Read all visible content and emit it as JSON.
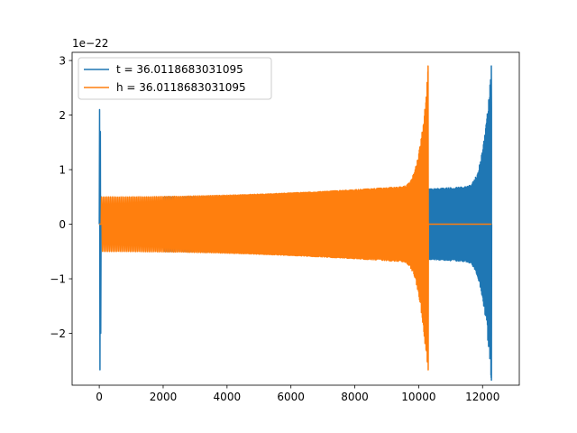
{
  "chart_data": {
    "type": "line",
    "title": "",
    "xlabel": "",
    "ylabel": "",
    "y_offset_label": "1e−22",
    "xlim": [
      -850,
      13150
    ],
    "ylim": [
      -2.95,
      3.15
    ],
    "x_ticks": [
      0,
      2000,
      4000,
      6000,
      8000,
      10000,
      12000
    ],
    "x_tick_labels": [
      "0",
      "2000",
      "4000",
      "6000",
      "8000",
      "10000",
      "12000"
    ],
    "y_ticks": [
      -2,
      -1,
      0,
      1,
      2,
      3
    ],
    "y_tick_labels": [
      "−2",
      "−1",
      "0",
      "1",
      "2",
      "3"
    ],
    "grid": false,
    "legend_position": "upper-left",
    "series": [
      {
        "name": "t = 36.0118683031095",
        "color": "#1f77b4",
        "shape": "chirp",
        "samples_x_range": [
          0,
          12280
        ],
        "x_start": 0,
        "x_merger": 12280,
        "baseline_amplitude": 0.5,
        "pre_merger_amplitude": 0.72,
        "peak_max": 2.9,
        "peak_min": -2.58,
        "initial_spike_max": 2.1,
        "initial_spike_min": -2.67
      },
      {
        "name": "h = 36.0118683031095",
        "color": "#ff7f0e",
        "shape": "chirp",
        "samples_x_range": [
          0,
          12280
        ],
        "x_start": 0,
        "x_merger": 10300,
        "baseline_amplitude": 0.5,
        "pre_merger_amplitude": 0.72,
        "peak_max": 2.9,
        "peak_min": -2.67,
        "flat_value_after_merger": 0,
        "flat_x_range": [
          10300,
          12280
        ]
      }
    ]
  }
}
